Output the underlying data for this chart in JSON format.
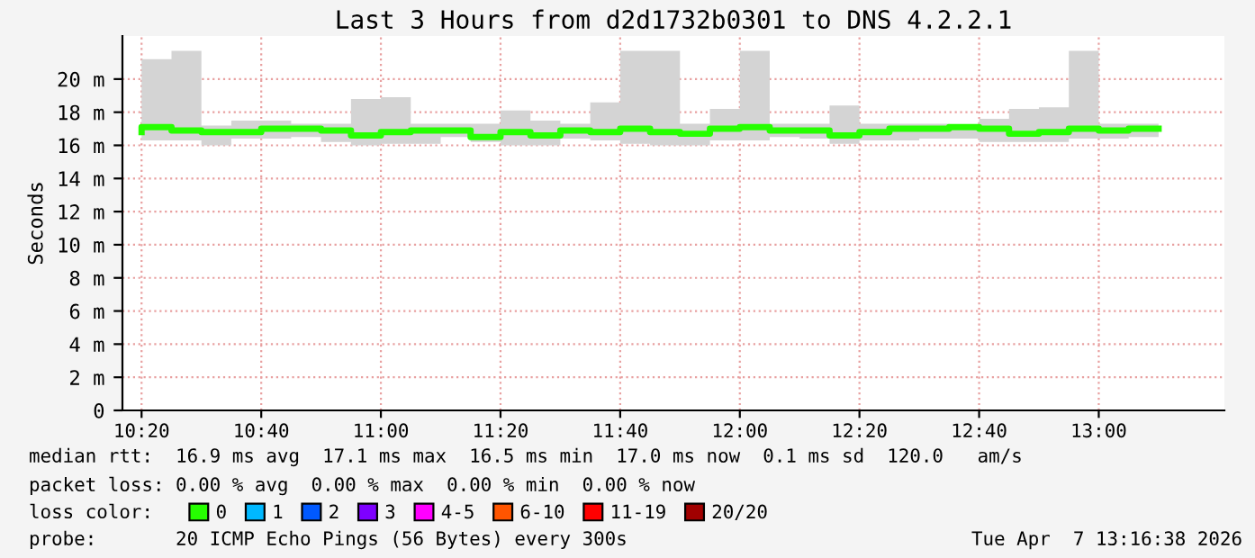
{
  "chart_data": {
    "type": "step",
    "title": "Last 3 Hours from d2d1732b0301 to DNS 4.2.2.1",
    "ylabel": "Seconds",
    "x": [
      10.3333,
      10.4167,
      10.5,
      10.5833,
      10.6667,
      10.75,
      10.8333,
      10.9167,
      11.0,
      11.0833,
      11.1667,
      11.25,
      11.3333,
      11.4167,
      11.5,
      11.5833,
      11.6667,
      11.75,
      11.8333,
      11.9167,
      12.0,
      12.0833,
      12.1667,
      12.25,
      12.3333,
      12.4167,
      12.5,
      12.5833,
      12.6667,
      12.75,
      12.8333,
      12.9167,
      13.0,
      13.0833,
      13.1667
    ],
    "series": [
      {
        "name": "0",
        "color": "#26ff00",
        "values": [
          16.8,
          17.1,
          16.9,
          16.8,
          16.8,
          17.0,
          17.0,
          16.9,
          16.6,
          16.8,
          16.9,
          16.9,
          16.5,
          16.8,
          16.6,
          16.9,
          16.8,
          17.0,
          16.8,
          16.7,
          17.0,
          17.1,
          16.9,
          16.9,
          16.6,
          16.8,
          17.0,
          17.0,
          17.1,
          17.0,
          16.7,
          16.8,
          17.0,
          16.9,
          17.0
        ],
        "lower": [
          16.5,
          16.3,
          16.3,
          16.0,
          16.4,
          16.4,
          16.5,
          16.2,
          16.0,
          16.1,
          16.1,
          16.5,
          16.2,
          16.0,
          16.0,
          16.4,
          16.3,
          16.1,
          16.0,
          16.0,
          16.3,
          16.3,
          16.5,
          16.4,
          16.1,
          16.3,
          16.3,
          16.4,
          16.4,
          16.2,
          16.2,
          16.2,
          16.4,
          16.4,
          16.5
        ],
        "upper": [
          18.0,
          21.2,
          21.7,
          17.2,
          17.5,
          17.5,
          17.3,
          17.3,
          18.8,
          18.9,
          17.3,
          17.3,
          17.3,
          18.1,
          17.5,
          17.3,
          18.6,
          21.7,
          21.7,
          17.3,
          18.2,
          21.7,
          17.3,
          17.3,
          18.4,
          17.3,
          17.3,
          17.3,
          17.2,
          17.6,
          18.2,
          18.3,
          21.7,
          17.3,
          17.3
        ]
      },
      {
        "name": "1",
        "color": "#00b8ff",
        "values": [
          null,
          null,
          null,
          null,
          null,
          null,
          null,
          null,
          null,
          null,
          null,
          null,
          null,
          null,
          null,
          null,
          null,
          null,
          null,
          null,
          null,
          null,
          null,
          null,
          null,
          null,
          null,
          null,
          null,
          null,
          null,
          null,
          null,
          null,
          null
        ]
      },
      {
        "name": "2",
        "color": "#0059ff",
        "values": [
          null,
          null,
          null,
          null,
          null,
          null,
          null,
          null,
          null,
          null,
          null,
          null,
          null,
          null,
          null,
          null,
          null,
          null,
          null,
          null,
          null,
          null,
          null,
          null,
          null,
          null,
          null,
          null,
          null,
          null,
          null,
          null,
          null,
          null,
          null
        ]
      },
      {
        "name": "3",
        "color": "#7e00ff",
        "values": [
          null,
          null,
          null,
          null,
          null,
          null,
          null,
          null,
          null,
          null,
          null,
          null,
          null,
          null,
          null,
          null,
          null,
          null,
          null,
          null,
          null,
          null,
          null,
          null,
          null,
          null,
          null,
          null,
          null,
          null,
          null,
          null,
          null,
          null,
          null
        ]
      },
      {
        "name": "4-5",
        "color": "#ff00ff",
        "values": [
          null,
          null,
          null,
          null,
          null,
          null,
          null,
          null,
          null,
          null,
          null,
          null,
          null,
          null,
          null,
          null,
          null,
          null,
          null,
          null,
          null,
          null,
          null,
          null,
          null,
          null,
          null,
          null,
          null,
          null,
          null,
          null,
          null,
          null,
          null
        ]
      },
      {
        "name": "6-10",
        "color": "#ff5500",
        "values": [
          null,
          null,
          null,
          null,
          null,
          null,
          null,
          null,
          null,
          null,
          null,
          null,
          null,
          null,
          null,
          null,
          null,
          null,
          null,
          null,
          null,
          null,
          null,
          null,
          null,
          null,
          null,
          null,
          null,
          null,
          null,
          null,
          null,
          null,
          null
        ]
      },
      {
        "name": "11-19",
        "color": "#ff0000",
        "values": [
          null,
          null,
          null,
          null,
          null,
          null,
          null,
          null,
          null,
          null,
          null,
          null,
          null,
          null,
          null,
          null,
          null,
          null,
          null,
          null,
          null,
          null,
          null,
          null,
          null,
          null,
          null,
          null,
          null,
          null,
          null,
          null,
          null,
          null,
          null
        ]
      },
      {
        "name": "20/20",
        "color": "#a10000",
        "values": [
          null,
          null,
          null,
          null,
          null,
          null,
          null,
          null,
          null,
          null,
          null,
          null,
          null,
          null,
          null,
          null,
          null,
          null,
          null,
          null,
          null,
          null,
          null,
          null,
          null,
          null,
          null,
          null,
          null,
          null,
          null,
          null,
          null,
          null,
          null
        ]
      }
    ],
    "legend_title": "loss color:",
    "legend": "bottom",
    "xlim": [
      10.28,
      13.35
    ],
    "xticks": [
      {
        "value": 10.3333,
        "label": "10:20"
      },
      {
        "value": 10.6667,
        "label": "10:40"
      },
      {
        "value": 11.0,
        "label": "11:00"
      },
      {
        "value": 11.3333,
        "label": "11:20"
      },
      {
        "value": 11.6667,
        "label": "11:40"
      },
      {
        "value": 12.0,
        "label": "12:00"
      },
      {
        "value": 12.3333,
        "label": "12:20"
      },
      {
        "value": 12.6667,
        "label": "12:40"
      },
      {
        "value": 13.0,
        "label": "13:00"
      }
    ],
    "ylim": [
      0,
      22.6
    ],
    "yticks": [
      0,
      {
        "value": 2,
        "label": "2 m"
      },
      {
        "value": 4,
        "label": "4 m"
      },
      {
        "value": 6,
        "label": "6 m"
      },
      {
        "value": 8,
        "label": "8 m"
      },
      {
        "value": 10,
        "label": "10 m"
      },
      {
        "value": 12,
        "label": "12 m"
      },
      {
        "value": 14,
        "label": "14 m"
      },
      {
        "value": 16,
        "label": "16 m"
      },
      {
        "value": 18,
        "label": "18 m"
      },
      {
        "value": 20,
        "label": "20 m"
      }
    ],
    "grid": true,
    "line_style": "solid",
    "annotations": [
      "median rtt:  16.9 ms avg  17.1 ms max  16.5 ms min  17.0 ms now  0.1 ms sd  120.0   am/s",
      "packet loss: 0.00 % avg  0.00 % max  0.00 % min  0.00 % now",
      "probe:       20 ICMP Echo Pings (56 Bytes) every 300s",
      "Tue Apr  7 13:16:38 2026"
    ]
  }
}
